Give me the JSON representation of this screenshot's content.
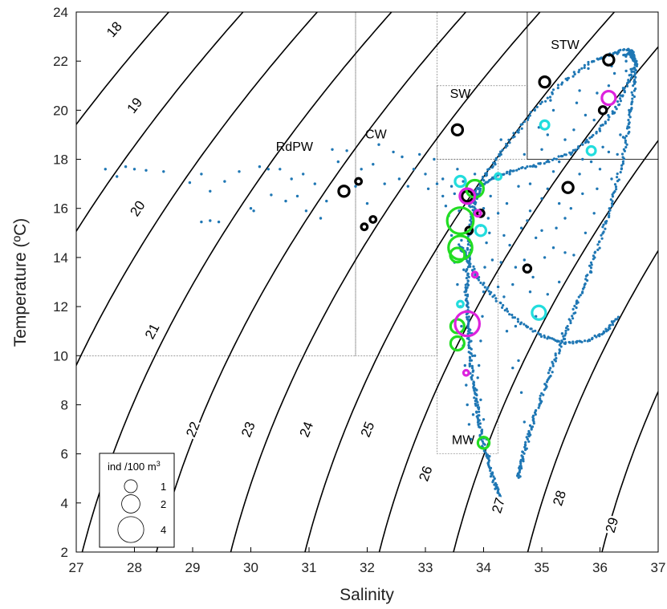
{
  "chart_data": {
    "type": "scatter",
    "title": "",
    "xlabel": "Salinity",
    "ylabel": "Temperature (ºC)",
    "xlim": [
      27,
      37
    ],
    "ylim": [
      2,
      24
    ],
    "x_ticks": [
      "27",
      "28",
      "29",
      "30",
      "31",
      "32",
      "33",
      "34",
      "35",
      "36",
      "37"
    ],
    "y_ticks": [
      "2",
      "4",
      "6",
      "8",
      "10",
      "12",
      "14",
      "16",
      "18",
      "20",
      "22",
      "24"
    ],
    "grid": false,
    "colors": {
      "ctd": "#1f77b4",
      "contour": "#000000",
      "species_black": "#000000",
      "species_green": "#22dd22",
      "species_magenta": "#dd22dd",
      "species_cyan": "#22dddd"
    },
    "density_contours": [
      {
        "label": "18",
        "sigma": 18,
        "label_at": [
          27.65,
          23.3
        ]
      },
      {
        "label": "19",
        "sigma": 19,
        "label_at": [
          28.0,
          20.2
        ]
      },
      {
        "label": "20",
        "sigma": 20,
        "label_at": [
          28.05,
          16.0
        ]
      },
      {
        "label": "21",
        "sigma": 21,
        "label_at": [
          28.3,
          11.0
        ]
      },
      {
        "label": "22",
        "sigma": 22,
        "label_at": [
          29.0,
          7.0
        ]
      },
      {
        "label": "23",
        "sigma": 23,
        "label_at": [
          29.95,
          7.0
        ]
      },
      {
        "label": "24",
        "sigma": 24,
        "label_at": [
          30.95,
          7.0
        ]
      },
      {
        "label": "25",
        "sigma": 25,
        "label_at": [
          32.0,
          7.0
        ]
      },
      {
        "label": "26",
        "sigma": 26,
        "label_at": [
          33.0,
          5.2
        ]
      },
      {
        "label": "27",
        "sigma": 27,
        "label_at": [
          34.25,
          3.9
        ]
      },
      {
        "label": "28",
        "sigma": 28,
        "label_at": [
          35.3,
          4.2
        ]
      },
      {
        "label": "29",
        "sigma": 29,
        "label_at": [
          36.2,
          3.1
        ]
      }
    ],
    "water_masses": [
      {
        "label": "RdPW",
        "label_at": [
          30.75,
          18.35
        ],
        "box": [
          27,
          31.8,
          10,
          24
        ]
      },
      {
        "label": "CW",
        "label_at": [
          32.15,
          18.85
        ],
        "box": [
          31.8,
          33.2,
          10,
          24
        ]
      },
      {
        "label": "SW",
        "label_at": [
          33.6,
          20.5
        ],
        "box": [
          33.2,
          34.75,
          18,
          21
        ]
      },
      {
        "label": "STW",
        "label_at": [
          35.4,
          22.5
        ],
        "box": [
          34.75,
          37,
          18,
          24
        ]
      },
      {
        "label": "MW",
        "label_at": [
          33.65,
          6.4
        ],
        "box": [
          33.2,
          34.25,
          6,
          18
        ]
      }
    ],
    "legend": {
      "title": "ind /100 m",
      "title_superscript": "3",
      "placement": "bottom-left",
      "entries": [
        {
          "label": "1",
          "value": 1
        },
        {
          "label": "2",
          "value": 2
        },
        {
          "label": "4",
          "value": 4
        }
      ]
    },
    "ctd_tracks": [
      {
        "name": "",
        "points": [
          [
            34.3,
            4.1
          ],
          [
            34.2,
            4.7
          ],
          [
            34.1,
            5.5
          ],
          [
            34.0,
            6.3
          ],
          [
            33.95,
            7.0
          ],
          [
            33.9,
            7.7
          ],
          [
            33.85,
            8.4
          ],
          [
            33.8,
            9.2
          ],
          [
            33.78,
            10.0
          ],
          [
            33.75,
            10.8
          ],
          [
            33.72,
            11.6
          ],
          [
            33.7,
            12.4
          ],
          [
            33.72,
            13.2
          ],
          [
            33.74,
            14.0
          ],
          [
            33.76,
            14.8
          ],
          [
            33.8,
            15.6
          ],
          [
            33.85,
            16.3
          ],
          [
            33.95,
            16.9
          ],
          [
            34.2,
            17.3
          ],
          [
            34.6,
            17.6
          ],
          [
            35.1,
            17.9
          ],
          [
            35.6,
            18.4
          ],
          [
            36.0,
            19.2
          ],
          [
            36.3,
            20.2
          ],
          [
            36.5,
            21.2
          ],
          [
            36.6,
            22.0
          ],
          [
            36.55,
            22.4
          ],
          [
            36.4,
            22.2
          ]
        ]
      },
      {
        "name": "",
        "points": [
          [
            34.6,
            5.0
          ],
          [
            34.65,
            5.6
          ],
          [
            34.72,
            6.3
          ],
          [
            34.82,
            7.1
          ],
          [
            34.95,
            8.0
          ],
          [
            35.1,
            9.0
          ],
          [
            35.25,
            10.0
          ],
          [
            35.42,
            11.0
          ],
          [
            35.6,
            12.1
          ],
          [
            35.8,
            13.3
          ],
          [
            35.98,
            14.5
          ],
          [
            36.15,
            15.8
          ],
          [
            36.3,
            17.1
          ],
          [
            36.42,
            18.4
          ],
          [
            36.52,
            19.7
          ],
          [
            36.58,
            20.9
          ],
          [
            36.62,
            21.9
          ],
          [
            36.5,
            22.5
          ],
          [
            36.2,
            22.3
          ],
          [
            35.8,
            21.9
          ],
          [
            35.3,
            21.0
          ],
          [
            34.8,
            19.8
          ],
          [
            34.4,
            18.6
          ],
          [
            34.1,
            17.6
          ],
          [
            33.9,
            16.8
          ],
          [
            33.75,
            16.0
          ]
        ]
      },
      {
        "name": "",
        "points": [
          [
            33.6,
            14.5
          ],
          [
            33.7,
            14.0
          ],
          [
            33.9,
            13.2
          ],
          [
            34.2,
            12.3
          ],
          [
            34.6,
            11.4
          ],
          [
            35.0,
            10.8
          ],
          [
            35.4,
            10.5
          ],
          [
            35.8,
            10.6
          ],
          [
            36.1,
            11.0
          ],
          [
            36.3,
            11.6
          ]
        ]
      }
    ],
    "ctd_points": [
      [
        27.5,
        17.6
      ],
      [
        27.7,
        17.3
      ],
      [
        27.85,
        17.7
      ],
      [
        28.0,
        17.6
      ],
      [
        28.2,
        17.55
      ],
      [
        28.5,
        17.5
      ],
      [
        28.95,
        17.05
      ],
      [
        29.15,
        17.4
      ],
      [
        29.3,
        16.7
      ],
      [
        29.15,
        15.45
      ],
      [
        29.3,
        15.5
      ],
      [
        29.45,
        15.45
      ],
      [
        29.55,
        17.1
      ],
      [
        29.8,
        17.5
      ],
      [
        30.0,
        16.0
      ],
      [
        30.05,
        15.9
      ],
      [
        30.15,
        17.7
      ],
      [
        30.3,
        17.6
      ],
      [
        30.35,
        16.55
      ],
      [
        30.5,
        17.6
      ],
      [
        30.6,
        16.3
      ],
      [
        30.7,
        17.2
      ],
      [
        30.8,
        16.5
      ],
      [
        30.9,
        17.4
      ],
      [
        30.95,
        15.9
      ],
      [
        31.1,
        17.0
      ],
      [
        31.2,
        15.6
      ],
      [
        31.3,
        16.3
      ],
      [
        31.4,
        18.4
      ],
      [
        31.5,
        17.9
      ],
      [
        31.65,
        18.35
      ],
      [
        31.8,
        16.9
      ],
      [
        31.9,
        17.6
      ],
      [
        32.0,
        16.2
      ],
      [
        32.1,
        17.8
      ],
      [
        32.2,
        18.6
      ],
      [
        32.3,
        17.0
      ],
      [
        32.45,
        18.3
      ],
      [
        32.55,
        17.2
      ],
      [
        32.6,
        18.1
      ],
      [
        32.7,
        16.9
      ],
      [
        32.8,
        17.6
      ],
      [
        32.9,
        18.2
      ],
      [
        33.0,
        17.4
      ],
      [
        33.05,
        16.8
      ],
      [
        33.15,
        18.0
      ],
      [
        33.2,
        17.0
      ],
      [
        33.3,
        16.5
      ],
      [
        33.4,
        15.7
      ],
      [
        33.45,
        14.9
      ],
      [
        33.5,
        13.8
      ],
      [
        33.55,
        12.9
      ],
      [
        33.6,
        12.0
      ],
      [
        33.62,
        11.2
      ],
      [
        33.65,
        10.4
      ],
      [
        33.68,
        9.6
      ],
      [
        33.7,
        8.8
      ],
      [
        33.72,
        8.0
      ],
      [
        33.75,
        7.2
      ],
      [
        33.78,
        6.6
      ],
      [
        33.82,
        7.6
      ],
      [
        33.88,
        8.6
      ],
      [
        33.92,
        9.6
      ],
      [
        33.95,
        10.6
      ],
      [
        33.98,
        11.6
      ],
      [
        34.0,
        12.6
      ],
      [
        34.02,
        13.6
      ],
      [
        34.05,
        14.6
      ],
      [
        34.08,
        15.6
      ],
      [
        34.12,
        16.5
      ],
      [
        34.2,
        17.8
      ],
      [
        34.3,
        18.8
      ],
      [
        34.4,
        16.2
      ],
      [
        34.45,
        14.5
      ],
      [
        34.5,
        12.9
      ],
      [
        34.55,
        11.2
      ],
      [
        34.6,
        9.8
      ],
      [
        34.65,
        8.5
      ],
      [
        34.7,
        7.3
      ],
      [
        34.75,
        15.5
      ],
      [
        34.8,
        17.0
      ],
      [
        34.85,
        13.2
      ],
      [
        34.9,
        11.6
      ],
      [
        34.95,
        19.3
      ],
      [
        35.0,
        16.4
      ],
      [
        35.05,
        14.0
      ],
      [
        35.1,
        12.5
      ],
      [
        35.15,
        20.4
      ],
      [
        35.2,
        17.5
      ],
      [
        35.25,
        15.2
      ],
      [
        35.3,
        13.0
      ],
      [
        35.35,
        10.9
      ],
      [
        35.4,
        18.8
      ],
      [
        35.45,
        21.3
      ],
      [
        35.5,
        16.0
      ],
      [
        35.55,
        14.1
      ],
      [
        35.6,
        12.2
      ],
      [
        35.65,
        20.8
      ],
      [
        35.7,
        18.0
      ],
      [
        35.75,
        15.0
      ],
      [
        35.8,
        21.7
      ],
      [
        35.85,
        13.4
      ],
      [
        35.9,
        19.6
      ],
      [
        35.95,
        16.8
      ],
      [
        36.0,
        22.1
      ],
      [
        36.05,
        18.5
      ],
      [
        36.1,
        15.4
      ],
      [
        36.15,
        21.0
      ],
      [
        36.2,
        17.2
      ],
      [
        36.25,
        19.9
      ],
      [
        36.3,
        22.3
      ],
      [
        36.35,
        20.6
      ],
      [
        36.4,
        18.9
      ],
      [
        36.45,
        21.6
      ],
      [
        36.5,
        20.0
      ],
      [
        33.3,
        17.2
      ],
      [
        33.35,
        16.1
      ],
      [
        33.42,
        15.2
      ],
      [
        33.5,
        16.6
      ],
      [
        33.58,
        15.9
      ],
      [
        33.62,
        14.7
      ],
      [
        33.66,
        13.5
      ],
      [
        33.7,
        12.7
      ],
      [
        33.76,
        11.8
      ],
      [
        33.8,
        10.9
      ],
      [
        33.85,
        10.0
      ],
      [
        33.9,
        9.1
      ],
      [
        33.95,
        8.2
      ],
      [
        34.0,
        7.4
      ],
      [
        34.05,
        6.6
      ],
      [
        34.1,
        5.9
      ],
      [
        34.15,
        5.2
      ],
      [
        34.22,
        4.6
      ],
      [
        34.3,
        13.8
      ],
      [
        34.35,
        12.4
      ],
      [
        34.4,
        11.0
      ],
      [
        34.5,
        9.5
      ],
      [
        34.6,
        16.9
      ],
      [
        34.65,
        15.2
      ],
      [
        34.7,
        13.9
      ],
      [
        34.8,
        12.6
      ],
      [
        34.9,
        14.8
      ],
      [
        35.0,
        18.4
      ],
      [
        35.1,
        16.8
      ],
      [
        35.2,
        14.4
      ],
      [
        35.3,
        17.9
      ],
      [
        35.4,
        15.6
      ],
      [
        35.55,
        19.2
      ],
      [
        35.65,
        17.4
      ],
      [
        35.75,
        19.8
      ],
      [
        35.85,
        17.9
      ],
      [
        35.95,
        20.7
      ],
      [
        36.05,
        19.4
      ],
      [
        36.15,
        18.3
      ],
      [
        36.25,
        21.5
      ],
      [
        36.35,
        19.0
      ],
      [
        36.45,
        22.0
      ],
      [
        33.45,
        16.9
      ],
      [
        33.55,
        17.6
      ],
      [
        33.65,
        17.1
      ],
      [
        33.75,
        16.7
      ],
      [
        33.85,
        17.4
      ],
      [
        33.95,
        15.3
      ],
      [
        34.0,
        16.0
      ],
      [
        34.1,
        15.0
      ],
      [
        34.15,
        13.9
      ],
      [
        34.25,
        12.8
      ],
      [
        34.25,
        15.8
      ],
      [
        34.35,
        14.9
      ],
      [
        34.45,
        17.4
      ],
      [
        34.55,
        13.6
      ],
      [
        34.6,
        19.1
      ],
      [
        34.7,
        18.2
      ],
      [
        34.8,
        15.9
      ],
      [
        34.9,
        17.7
      ],
      [
        35.0,
        15.1
      ],
      [
        35.1,
        19.0
      ],
      [
        35.2,
        20.0
      ],
      [
        35.3,
        16.2
      ],
      [
        35.4,
        14.2
      ],
      [
        35.5,
        18.2
      ],
      [
        35.6,
        20.3
      ],
      [
        35.7,
        16.6
      ],
      [
        35.8,
        18.7
      ],
      [
        35.9,
        15.8
      ],
      [
        36.0,
        17.6
      ],
      [
        36.1,
        20.1
      ],
      [
        36.2,
        21.8
      ],
      [
        36.3,
        18.2
      ],
      [
        36.4,
        20.9
      ],
      [
        36.5,
        19.3
      ]
    ],
    "species_circles": [
      {
        "name": "",
        "color": "black",
        "points": [
          {
            "x": 31.6,
            "y": 16.7,
            "abundance": 0.6
          },
          {
            "x": 31.85,
            "y": 17.1,
            "abundance": 0.2
          },
          {
            "x": 31.95,
            "y": 15.25,
            "abundance": 0.2
          },
          {
            "x": 32.1,
            "y": 15.55,
            "abundance": 0.2
          },
          {
            "x": 33.55,
            "y": 19.2,
            "abundance": 0.6
          },
          {
            "x": 33.72,
            "y": 16.5,
            "abundance": 0.6
          },
          {
            "x": 33.75,
            "y": 15.1,
            "abundance": 0.25
          },
          {
            "x": 33.95,
            "y": 15.8,
            "abundance": 0.25
          },
          {
            "x": 34.75,
            "y": 13.55,
            "abundance": 0.3
          },
          {
            "x": 35.05,
            "y": 21.15,
            "abundance": 0.6
          },
          {
            "x": 35.45,
            "y": 16.85,
            "abundance": 0.6
          },
          {
            "x": 36.05,
            "y": 20.0,
            "abundance": 0.3
          },
          {
            "x": 36.15,
            "y": 22.05,
            "abundance": 0.6
          }
        ]
      },
      {
        "name": "",
        "color": "green",
        "points": [
          {
            "x": 33.6,
            "y": 15.5,
            "abundance": 3.7
          },
          {
            "x": 33.6,
            "y": 14.4,
            "abundance": 3.0
          },
          {
            "x": 33.55,
            "y": 14.1,
            "abundance": 1.1
          },
          {
            "x": 33.85,
            "y": 16.8,
            "abundance": 1.6
          },
          {
            "x": 33.55,
            "y": 11.2,
            "abundance": 1.0
          },
          {
            "x": 33.55,
            "y": 10.5,
            "abundance": 1.0
          },
          {
            "x": 34.0,
            "y": 6.45,
            "abundance": 0.7
          }
        ]
      },
      {
        "name": "",
        "color": "magenta",
        "points": [
          {
            "x": 33.72,
            "y": 11.3,
            "abundance": 3.2
          },
          {
            "x": 33.72,
            "y": 16.5,
            "abundance": 1.2
          },
          {
            "x": 36.15,
            "y": 20.5,
            "abundance": 1.0
          },
          {
            "x": 33.9,
            "y": 15.8,
            "abundance": 0.2
          },
          {
            "x": 33.85,
            "y": 13.3,
            "abundance": 0.15
          },
          {
            "x": 33.7,
            "y": 9.3,
            "abundance": 0.15
          }
        ]
      },
      {
        "name": "",
        "color": "cyan",
        "points": [
          {
            "x": 33.6,
            "y": 17.1,
            "abundance": 0.6
          },
          {
            "x": 33.95,
            "y": 15.1,
            "abundance": 0.6
          },
          {
            "x": 34.95,
            "y": 11.75,
            "abundance": 1.0
          },
          {
            "x": 35.05,
            "y": 19.4,
            "abundance": 0.4
          },
          {
            "x": 35.85,
            "y": 18.35,
            "abundance": 0.4
          },
          {
            "x": 33.6,
            "y": 12.1,
            "abundance": 0.2
          },
          {
            "x": 34.25,
            "y": 17.3,
            "abundance": 0.2
          }
        ]
      }
    ]
  }
}
